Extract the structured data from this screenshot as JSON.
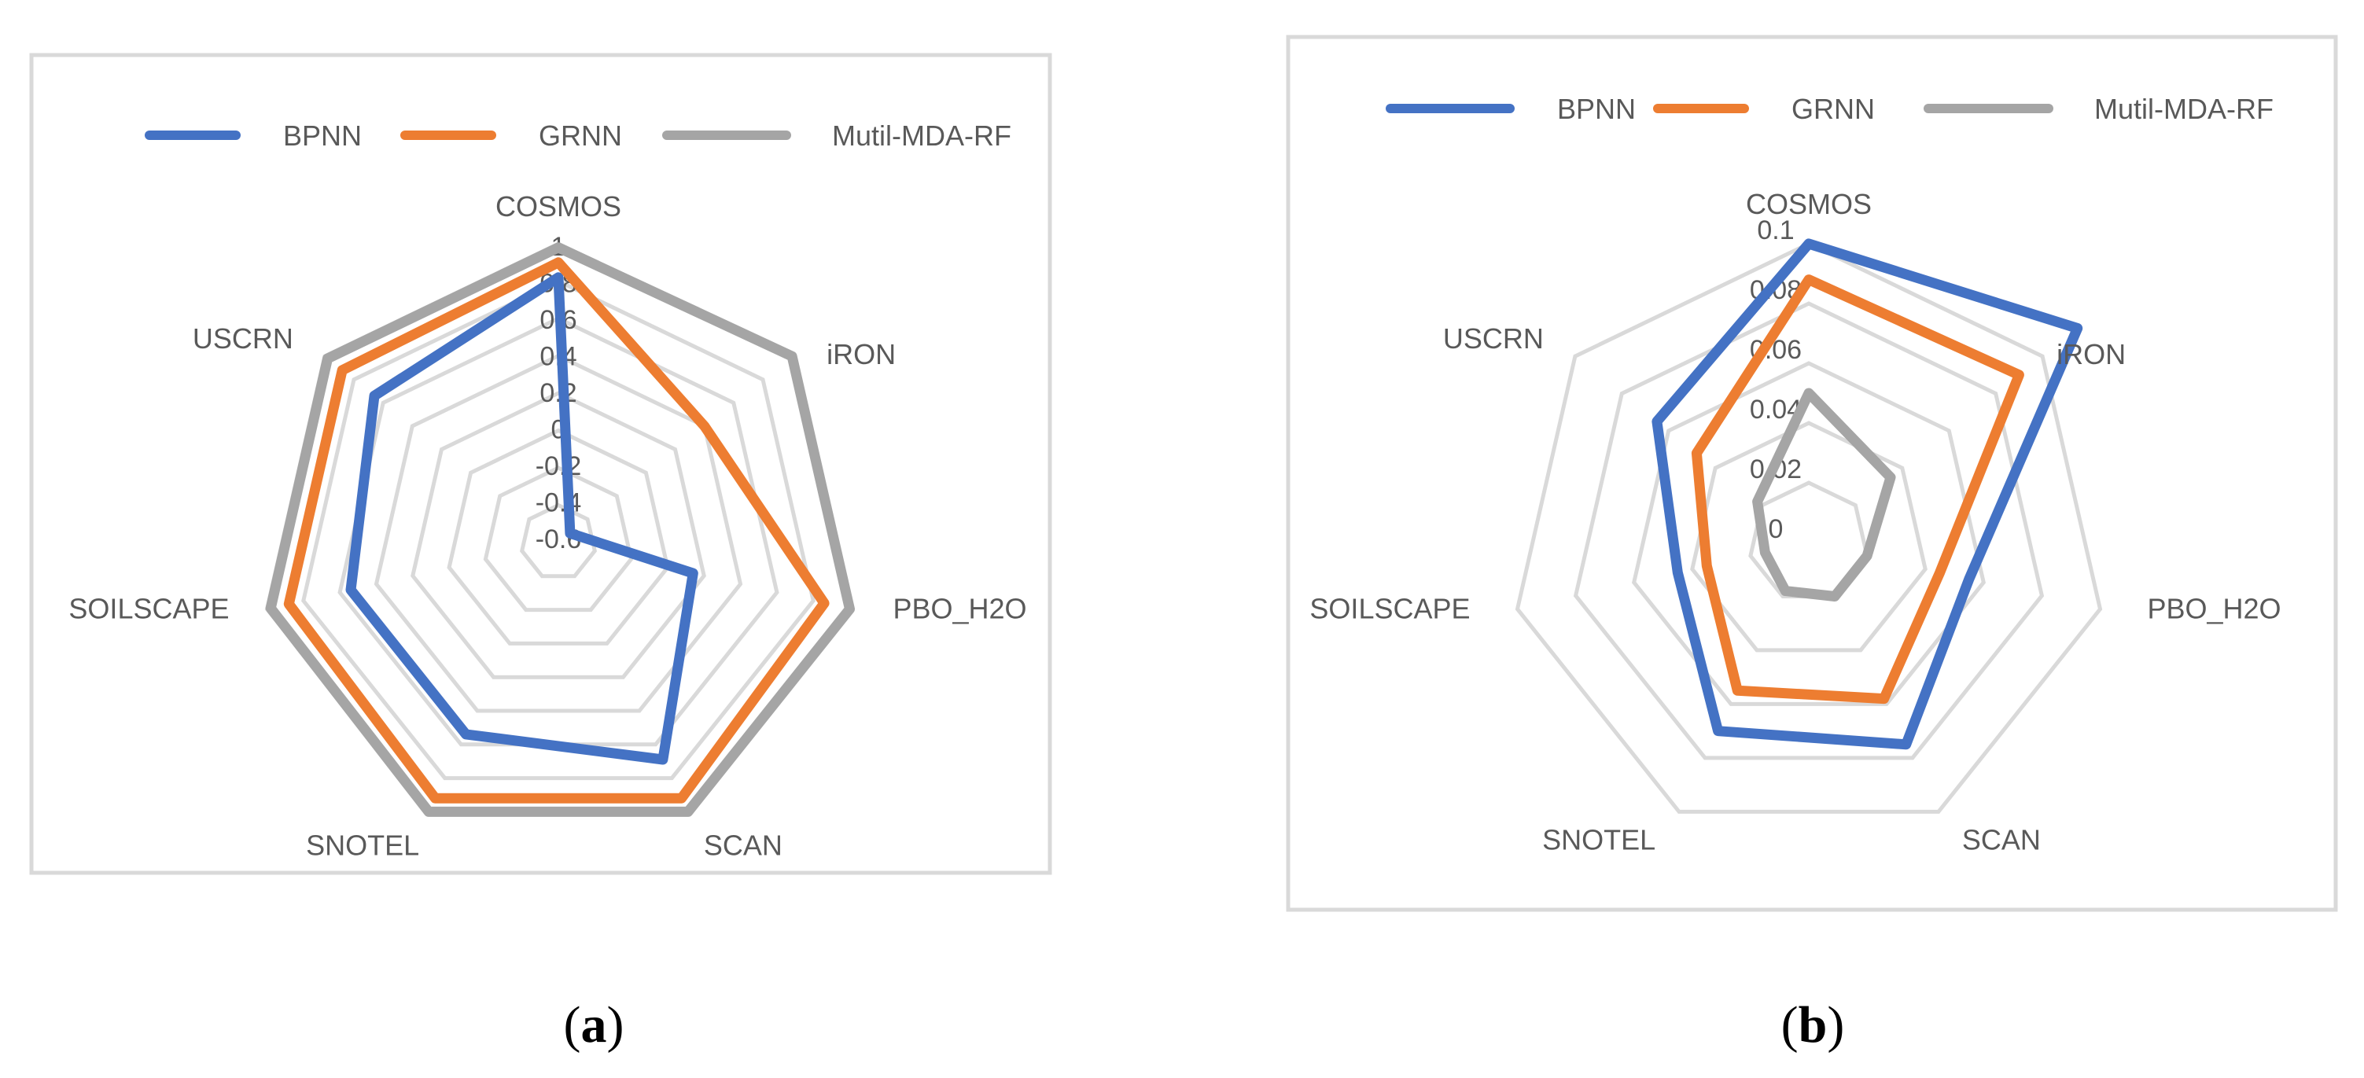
{
  "chart_data": [
    {
      "type": "radar",
      "panel_label": "a",
      "categories": [
        "COSMOS",
        "iRON",
        "PBO_H2O",
        "SCAN",
        "SNOTEL",
        "SOILSCAPE",
        "USCRN"
      ],
      "radial_ticks": [
        "1",
        "0.8",
        "0.6",
        "0.4",
        "0.2",
        "0",
        "-0.2",
        "-0.4",
        "-0.6"
      ],
      "rlim": [
        -0.6,
        1
      ],
      "grid": true,
      "legend_position": "top",
      "series": [
        {
          "name": "BPNN",
          "color": "#4472C4",
          "values": [
            0.82,
            -0.52,
            0.14,
            0.69,
            0.54,
            0.54,
            0.66
          ]
        },
        {
          "name": "GRNN",
          "color": "#ED7D31",
          "values": [
            0.9,
            0.4,
            0.86,
            0.92,
            0.92,
            0.88,
            0.88
          ]
        },
        {
          "name": "Mutil-MDA-RF",
          "color": "#A5A5A5",
          "values": [
            0.98,
            1.0,
            1.0,
            1.0,
            1.0,
            0.98,
            0.98
          ]
        }
      ]
    },
    {
      "type": "radar",
      "panel_label": "b",
      "categories": [
        "COSMOS",
        "iRON",
        "PBO_H2O",
        "SCAN",
        "SNOTEL",
        "SOILSCAPE",
        "USCRN"
      ],
      "radial_ticks": [
        "0.1",
        "0.08",
        "0.06",
        "0.04",
        "0.02",
        "0"
      ],
      "rlim": [
        0,
        0.1
      ],
      "grid": true,
      "legend_position": "top",
      "series": [
        {
          "name": "BPNN",
          "color": "#4472C4",
          "values": [
            0.1,
            0.115,
            0.055,
            0.075,
            0.07,
            0.045,
            0.065
          ]
        },
        {
          "name": "GRNN",
          "color": "#ED7D31",
          "values": [
            0.088,
            0.09,
            0.045,
            0.058,
            0.055,
            0.035,
            0.048
          ]
        },
        {
          "name": "Mutil-MDA-RF",
          "color": "#A5A5A5",
          "values": [
            0.05,
            0.035,
            0.02,
            0.02,
            0.018,
            0.015,
            0.022
          ]
        }
      ]
    }
  ]
}
